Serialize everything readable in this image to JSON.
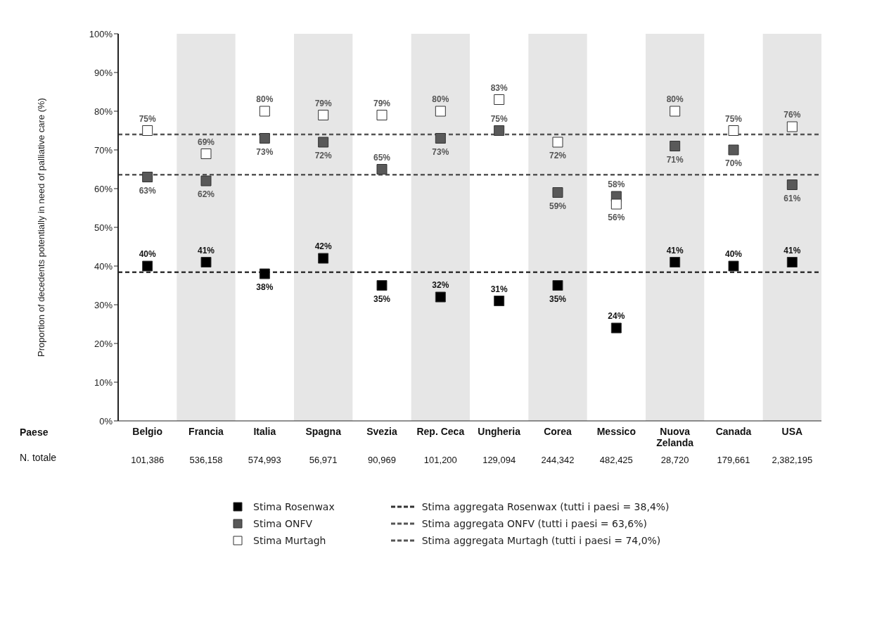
{
  "chart_data": {
    "type": "scatter",
    "ylabel": "Proportion of decedents potentially in need of palliative care (%)",
    "categories": [
      "Belgio",
      "Francia",
      "Italia",
      "Spagna",
      "Svezia",
      "Rep. Ceca",
      "Ungheria",
      "Corea",
      "Messico",
      "Nuova Zelanda",
      "Canada",
      "USA"
    ],
    "series": [
      {
        "name": "Stima Rosenwax",
        "color": "#000000",
        "values": [
          40,
          41,
          38,
          42,
          35,
          32,
          31,
          35,
          24,
          41,
          40,
          41
        ],
        "value_labels": [
          "40%",
          "41%",
          "38%",
          "42%",
          "35%",
          "32%",
          "31%",
          "35%",
          "24%",
          "41%",
          "40%",
          "41%"
        ]
      },
      {
        "name": "Stima ONFV",
        "color": "#595959",
        "values": [
          63,
          62,
          73,
          72,
          65,
          73,
          75,
          59,
          58,
          71,
          70,
          61
        ],
        "value_labels": [
          "63%",
          "62%",
          "73%",
          "72%",
          "65%",
          "73%",
          "75%",
          "59%",
          "58%",
          "71%",
          "70%",
          "61%"
        ]
      },
      {
        "name": "Stima Murtagh",
        "color": "#ffffff",
        "values": [
          75,
          69,
          80,
          79,
          79,
          80,
          83,
          72,
          56,
          80,
          75,
          76
        ],
        "value_labels": [
          "75%",
          "69%",
          "80%",
          "79%",
          "79%",
          "80%",
          "83%",
          "72%",
          "56%",
          "80%",
          "75%",
          "76%"
        ]
      }
    ],
    "marker": "square",
    "ylim": [
      0,
      100
    ],
    "yticks": [
      {
        "value": 0,
        "label": "0%"
      },
      {
        "value": 10,
        "label": "10%"
      },
      {
        "value": 20,
        "label": "20%"
      },
      {
        "value": 30,
        "label": "30%"
      },
      {
        "value": 40,
        "label": "40%"
      },
      {
        "value": 50,
        "label": "50%"
      },
      {
        "value": 60,
        "label": "60%"
      },
      {
        "value": 70,
        "label": "70%"
      },
      {
        "value": 80,
        "label": "80%"
      },
      {
        "value": 90,
        "label": "90%"
      },
      {
        "value": 100,
        "label": "100%"
      }
    ],
    "ref_lines": [
      {
        "axis": "y",
        "value": 38.4,
        "label": "Stima aggregata Rosenwax (tutti i paesi = 38,4%)",
        "color": "#333333",
        "line_style": "dashed"
      },
      {
        "axis": "y",
        "value": 63.6,
        "label": "Stima aggregata ONFV (tutti i paesi = 63,6%)",
        "color": "#555555",
        "line_style": "dashed"
      },
      {
        "axis": "y",
        "value": 74.0,
        "label": "Stima aggregata Murtagh (tutti i paesi = 74,0%)",
        "color": "#555555",
        "line_style": "dashed"
      }
    ],
    "bands": [
      {
        "axis": "x",
        "from": "Francia",
        "to": "Francia",
        "color": "#e6e6e6"
      },
      {
        "axis": "x",
        "from": "Spagna",
        "to": "Spagna",
        "color": "#e6e6e6"
      },
      {
        "axis": "x",
        "from": "Rep. Ceca",
        "to": "Rep. Ceca",
        "color": "#e6e6e6"
      },
      {
        "axis": "x",
        "from": "Corea",
        "to": "Corea",
        "color": "#e6e6e6"
      },
      {
        "axis": "x",
        "from": "Nuova Zelanda",
        "to": "Nuova Zelanda",
        "color": "#e6e6e6"
      },
      {
        "axis": "x",
        "from": "USA",
        "to": "USA",
        "color": "#e6e6e6"
      }
    ],
    "annotations": [
      "Paese",
      "N. totale",
      "101,386",
      "536,158",
      "574,993",
      "56,971",
      "90,969",
      "101,200",
      "129,094",
      "244,342",
      "482,425",
      "28,720",
      "179,661",
      "2,382,195"
    ],
    "grid": false,
    "legend": "bottom"
  }
}
